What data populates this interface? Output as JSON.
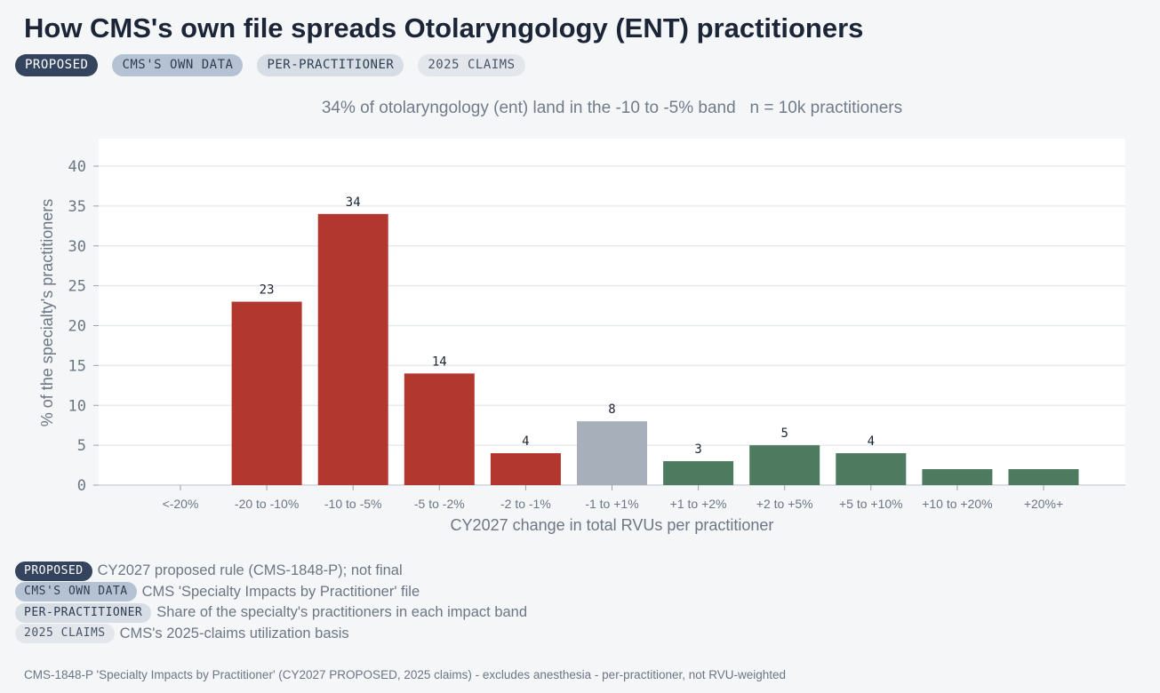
{
  "title": "How CMS's own file spreads Otolaryngology (ENT) practitioners",
  "tags": [
    {
      "label": "PROPOSED",
      "style": "proposed"
    },
    {
      "label": "CMS'S OWN DATA",
      "style": "own"
    },
    {
      "label": "PER-PRACTITIONER",
      "style": "pp"
    },
    {
      "label": "2025 CLAIMS",
      "style": "claims"
    }
  ],
  "subtitle": {
    "headline": "34% of otolaryngology (ent) land in the -10 to -5% band",
    "n_label": "n = 10k practitioners"
  },
  "chart_data": {
    "type": "bar",
    "title": "",
    "xlabel": "CY2027 change in total RVUs per practitioner",
    "ylabel": "% of the specialty's practitioners",
    "ylim": [
      0,
      41
    ],
    "yticks": [
      0,
      5,
      10,
      15,
      20,
      25,
      30,
      35,
      40
    ],
    "grid": true,
    "categories": [
      "<-20%",
      "-20 to -10%",
      "-10 to -5%",
      "-5 to -2%",
      "-2 to -1%",
      "-1 to +1%",
      "+1 to +2%",
      "+2 to +5%",
      "+5 to +10%",
      "+10 to +20%",
      "+20%+"
    ],
    "values": [
      0,
      23,
      34,
      14,
      4,
      8,
      3,
      5,
      4,
      2,
      2
    ],
    "data_labels": [
      "",
      "23",
      "34",
      "14",
      "4",
      "8",
      "3",
      "5",
      "4",
      "",
      ""
    ],
    "colors": {
      "negative": "#b2372e",
      "neutral": "#a7afbb",
      "positive": "#4e7a60",
      "plot_bg": "#ffffff",
      "grid": "#e6e9ee",
      "axis_text": "#6c7684"
    },
    "bar_groups": [
      "negative",
      "negative",
      "negative",
      "negative",
      "negative",
      "neutral",
      "positive",
      "positive",
      "positive",
      "positive",
      "positive"
    ]
  },
  "legend": [
    {
      "tag": "PROPOSED",
      "style": "proposed",
      "text": "CY2027 proposed rule (CMS-1848-P); not final"
    },
    {
      "tag": "CMS'S OWN DATA",
      "style": "own",
      "text": "CMS 'Specialty Impacts by Practitioner' file"
    },
    {
      "tag": "PER-PRACTITIONER",
      "style": "pp",
      "text": "Share of the specialty's practitioners in each impact band"
    },
    {
      "tag": "2025 CLAIMS",
      "style": "claims",
      "text": "CMS's 2025-claims utilization basis"
    }
  ],
  "footer": "CMS-1848-P 'Specialty Impacts by Practitioner' (CY2027 PROPOSED, 2025 claims) - excludes anesthesia - per-practitioner, not RVU-weighted"
}
